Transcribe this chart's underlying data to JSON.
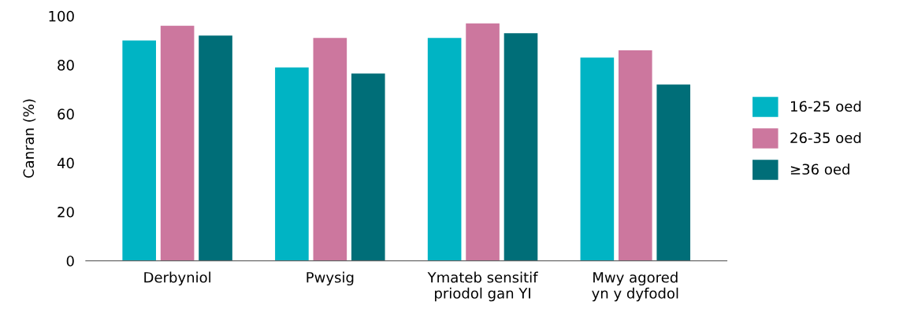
{
  "chart_data": {
    "type": "bar",
    "ylabel": "Canran (%)",
    "categories": [
      "Derbyniol",
      "Pwysig",
      "Ymateb sensitif\npriodol gan YI",
      "Mwy agored\nyn y dyfodol"
    ],
    "series": [
      {
        "name": "16-25 oed",
        "color": "#00b4c4",
        "values": [
          90,
          79,
          91,
          83
        ]
      },
      {
        "name": "26-35 oed",
        "color": "#cc779e",
        "values": [
          96,
          91,
          97,
          86
        ]
      },
      {
        "name": "≥36 oed",
        "color": "#006e78",
        "values": [
          92,
          76.5,
          93,
          72
        ]
      }
    ],
    "ylim": [
      0,
      100
    ],
    "yticks": [
      0,
      20,
      40,
      60,
      80,
      100
    ],
    "grid": false,
    "legend": "right"
  }
}
